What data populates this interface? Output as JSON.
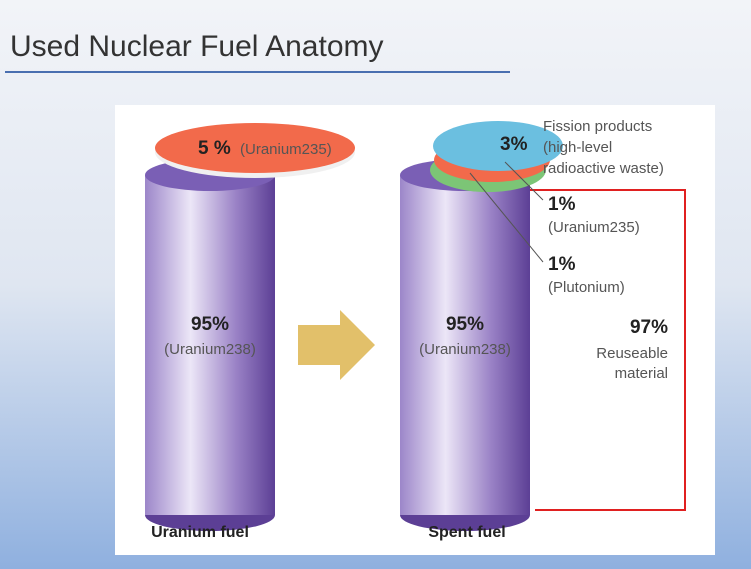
{
  "title": "Used Nuclear Fuel Anatomy",
  "fresh_fuel": {
    "label": "Uranium fuel",
    "top": {
      "percent": "5 %",
      "name": "(Uranium235)"
    },
    "body": {
      "percent": "95%",
      "name": "(Uranium238)"
    }
  },
  "spent_fuel": {
    "label": "Spent fuel",
    "fission": {
      "percent": "3%",
      "name": [
        "Fission products",
        "(high-level",
        "radioactive waste)"
      ]
    },
    "uranium235": {
      "percent": "1%",
      "name": "(Uranium235)"
    },
    "plutonium": {
      "percent": "1%",
      "name": "(Plutonium)"
    },
    "body": {
      "percent": "95%",
      "name": "(Uranium238)"
    },
    "reusable": {
      "percent": "97%",
      "name": [
        "Reuseable",
        "material"
      ]
    }
  }
}
